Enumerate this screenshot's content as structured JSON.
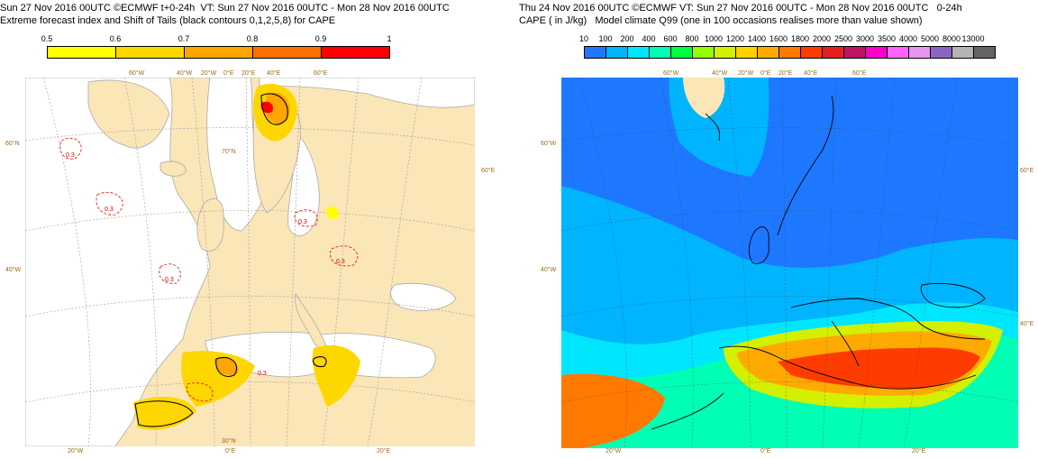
{
  "left_panel": {
    "title_line1": "Sun 27 Nov 2016 00UTC ©ECMWF t+0-24h  VT: Sun 27 Nov 2016 00UTC - Mon 28 Nov 2016 00UTC",
    "title_line2": "Extreme forecast index and Shift of Tails (black contours 0,1,2,5,8) for CAPE",
    "legend_ticks": [
      "0.5",
      "0.6",
      "0.7",
      "0.8",
      "0.9",
      "1"
    ],
    "legend_colors": [
      "#ffff00",
      "#ffd700",
      "#ffa500",
      "#ff7000",
      "#ff0000"
    ],
    "map_colors": {
      "land": "#fbe6b8",
      "sea": "#ffffff",
      "coast": "#aaaaaa",
      "grid": "#999999"
    },
    "contour_label": "0.3",
    "grid_labels": {
      "top": [
        "60°W",
        "40°W",
        "20°W",
        "0°E",
        "20°E",
        "40°E",
        "60°E"
      ],
      "left": [
        "60°N",
        "40°W"
      ],
      "right": [
        "60°E"
      ],
      "inner": [
        "70°N",
        "30°N"
      ],
      "bottom": [
        "20°W",
        "0°E",
        "20°E"
      ]
    }
  },
  "right_panel": {
    "title_line1": "Thu 24 Nov 2016 00UTC ©ECMWF VT: Sun 27 Nov 2016 00UTC - Mon 28 Nov 2016 00UTC   0-24h",
    "title_line2": "CAPE ( in J/kg)   Model climate Q99 (one in 100 occasions realises more than value shown)",
    "legend_ticks": [
      "10",
      "100",
      "200",
      "400",
      "600",
      "800",
      "1000",
      "1200",
      "1400",
      "1600",
      "1800",
      "2000",
      "2500",
      "3000",
      "3500",
      "4000",
      "5000",
      "8000",
      "13000"
    ],
    "legend_colors": [
      "#1e78ff",
      "#00b4ff",
      "#00e6ff",
      "#00ffb4",
      "#00ff3c",
      "#96ff00",
      "#d2f000",
      "#ffd200",
      "#ffaa00",
      "#ff7800",
      "#ff3c00",
      "#e61e1e",
      "#be1464",
      "#ff00c8",
      "#ff64ff",
      "#e696f0",
      "#8c64c8",
      "#b4b4b4",
      "#646464"
    ],
    "grid_labels": {
      "top": [
        "60°W",
        "40°W",
        "20°W",
        "0°E",
        "20°E",
        "40°E",
        "60°E"
      ],
      "left": [
        "60°W",
        "40°W"
      ],
      "right": [
        "60°E",
        "40°E"
      ],
      "bottom": [
        "20°W",
        "0°E",
        "20°E"
      ]
    }
  }
}
